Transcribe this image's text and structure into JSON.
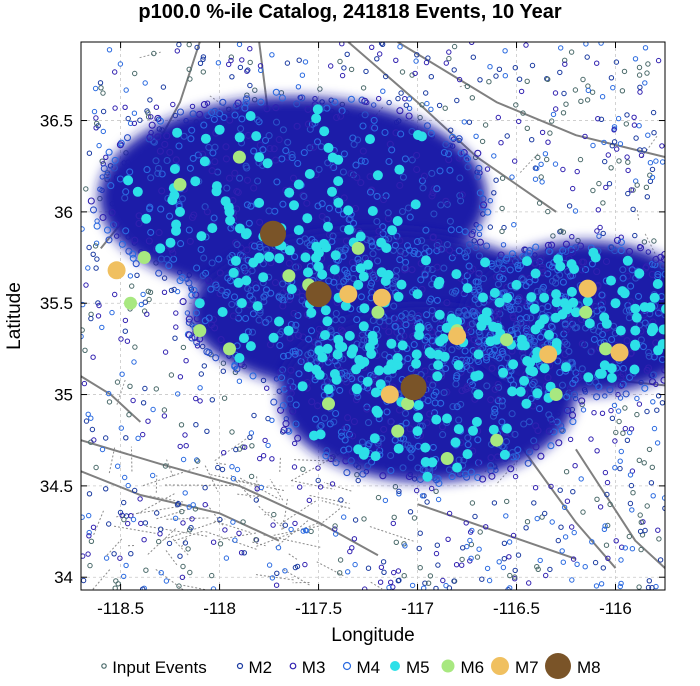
{
  "chart_data": {
    "type": "scatter",
    "title": "p100.0 %-ile Catalog, 241818 Events, 10 Year",
    "xlabel": "Longitude",
    "ylabel": "Latitude",
    "xlim": [
      -118.7,
      -115.75
    ],
    "ylim": [
      33.93,
      36.93
    ],
    "x_ticks": [
      -118.5,
      -118,
      -117.5,
      -117,
      -116.5,
      -116
    ],
    "x_tick_labels": [
      "-118.5",
      "-118",
      "-117.5",
      "-117",
      "-116.5",
      "-116"
    ],
    "y_ticks": [
      34,
      34.5,
      35,
      35.5,
      36,
      36.5
    ],
    "y_tick_labels": [
      "34",
      "34.5",
      "35",
      "35.5",
      "36",
      "36.5"
    ],
    "grid": true,
    "legend_position": "bottom",
    "background_layers": "grey fault lines and dotted road network",
    "colors": {
      "input": "#4a6a6a",
      "m2": "#1a3aa0",
      "m3": "#3020b0",
      "m4": "#2a6ae0",
      "m5": "#2de0e8",
      "m6": "#a8e880",
      "m7": "#f0c060",
      "m8": "#7a5428",
      "cluster_fill": "#1c1ca8",
      "fault": "#808080"
    },
    "clusters": [
      {
        "name": "north",
        "center": [
          -117.63,
          36.08
        ],
        "radius_lon": 0.98,
        "radius_lat": 0.55
      },
      {
        "name": "middle",
        "center": [
          -117.2,
          35.45
        ],
        "radius_lon": 0.95,
        "radius_lat": 0.45
      },
      {
        "name": "south",
        "center": [
          -116.95,
          35.0
        ],
        "radius_lon": 0.75,
        "radius_lat": 0.48
      },
      {
        "name": "east",
        "center": [
          -116.15,
          35.42
        ],
        "radius_lon": 0.62,
        "radius_lat": 0.42
      }
    ],
    "series": [
      {
        "name": "Input Events",
        "marker": "small-open-circle"
      },
      {
        "name": "M2",
        "marker": "open-circle"
      },
      {
        "name": "M3",
        "marker": "open-circle"
      },
      {
        "name": "M4",
        "marker": "open-circle"
      },
      {
        "name": "M5",
        "marker": "filled-circle",
        "points": [
          [
            -118.0,
            36.45
          ],
          [
            -117.8,
            36.3
          ],
          [
            -117.6,
            36.15
          ],
          [
            -117.4,
            36.05
          ],
          [
            -117.2,
            36.2
          ],
          [
            -117.1,
            35.95
          ],
          [
            -117.5,
            35.7
          ],
          [
            -117.3,
            35.6
          ],
          [
            -117.0,
            35.55
          ],
          [
            -116.8,
            35.4
          ],
          [
            -116.6,
            35.3
          ],
          [
            -116.4,
            35.2
          ],
          [
            -116.2,
            35.45
          ],
          [
            -116.0,
            35.5
          ],
          [
            -115.9,
            35.35
          ],
          [
            -117.7,
            35.4
          ],
          [
            -117.9,
            35.2
          ],
          [
            -118.1,
            35.5
          ],
          [
            -118.3,
            35.8
          ],
          [
            -117.2,
            34.9
          ],
          [
            -117.0,
            34.8
          ],
          [
            -116.8,
            34.6
          ],
          [
            -116.7,
            34.85
          ],
          [
            -117.1,
            35.2
          ],
          [
            -116.9,
            35.1
          ],
          [
            -117.4,
            35.3
          ],
          [
            -116.5,
            35.6
          ],
          [
            -116.3,
            35.55
          ],
          [
            -116.1,
            35.75
          ],
          [
            -117.6,
            35.9
          ],
          [
            -117.8,
            35.75
          ],
          [
            -118.2,
            36.0
          ],
          [
            -117.3,
            34.7
          ],
          [
            -116.95,
            34.55
          ],
          [
            -116.45,
            34.95
          ],
          [
            -116.65,
            35.45
          ],
          [
            -117.55,
            35.15
          ],
          [
            -117.45,
            36.35
          ],
          [
            -117.95,
            36.0
          ],
          [
            -116.25,
            35.15
          ]
        ]
      },
      {
        "name": "M6",
        "marker": "filled-circle",
        "points": [
          [
            -118.45,
            35.5
          ],
          [
            -118.2,
            36.15
          ],
          [
            -117.9,
            36.3
          ],
          [
            -117.55,
            35.6
          ],
          [
            -117.3,
            35.8
          ],
          [
            -117.2,
            35.45
          ],
          [
            -116.8,
            35.35
          ],
          [
            -116.55,
            35.3
          ],
          [
            -116.6,
            34.75
          ],
          [
            -117.05,
            34.95
          ],
          [
            -117.45,
            34.95
          ],
          [
            -117.95,
            35.25
          ],
          [
            -118.1,
            35.35
          ],
          [
            -116.3,
            35.0
          ],
          [
            -116.15,
            35.45
          ],
          [
            -116.05,
            35.25
          ],
          [
            -117.65,
            35.65
          ],
          [
            -116.85,
            34.65
          ],
          [
            -117.1,
            34.8
          ],
          [
            -118.38,
            35.75
          ]
        ]
      },
      {
        "name": "M7",
        "marker": "filled-circle",
        "points": [
          [
            -118.52,
            35.68
          ],
          [
            -117.35,
            35.55
          ],
          [
            -117.18,
            35.53
          ],
          [
            -116.8,
            35.32
          ],
          [
            -116.34,
            35.22
          ],
          [
            -116.14,
            35.58
          ],
          [
            -115.98,
            35.23
          ],
          [
            -117.14,
            35.0
          ]
        ]
      },
      {
        "name": "M8",
        "marker": "filled-circle",
        "points": [
          [
            -117.73,
            35.88
          ],
          [
            -117.5,
            35.55
          ],
          [
            -117.02,
            35.04
          ]
        ]
      }
    ]
  }
}
